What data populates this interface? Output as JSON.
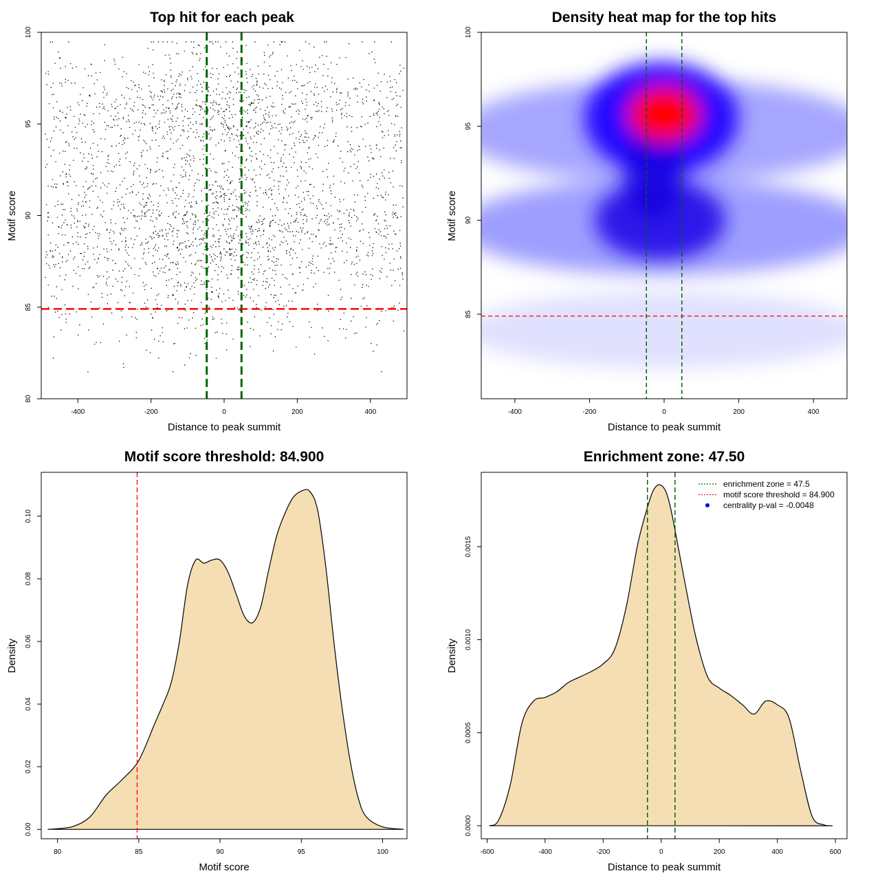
{
  "chart_data": [
    {
      "type": "scatter",
      "title": "Top hit for each peak",
      "xlabel": "Distance to peak summit",
      "ylabel": "Motif score",
      "xlim": [
        -500,
        500
      ],
      "ylim": [
        80,
        100
      ],
      "xticks": [
        -400,
        -200,
        0,
        200,
        400
      ],
      "yticks": [
        80,
        85,
        90,
        95,
        100
      ],
      "n_points": 9000,
      "x_range_of_points": [
        -490,
        490
      ],
      "y_range_of_points": [
        81.5,
        99.5
      ],
      "density_modes_y": [
        95.5,
        89.5
      ],
      "vlines": [
        -47.5,
        47.5
      ],
      "hline": 84.9,
      "colors": {
        "points": "#000000",
        "vline": "#006400",
        "hline": "#ff0000"
      }
    },
    {
      "type": "heatmap",
      "title": "Density heat map for the top hits",
      "xlabel": "Distance to peak summit",
      "ylabel": "Motif score",
      "xlim": [
        -490,
        490
      ],
      "ylim": [
        80.5,
        100
      ],
      "xticks": [
        -400,
        -200,
        0,
        200,
        400
      ],
      "yticks": [
        85,
        90,
        95,
        100
      ],
      "density_peaks": [
        {
          "x": 0,
          "y": 95.5,
          "level": "high"
        },
        {
          "x": 0,
          "y": 90,
          "level": "medium"
        }
      ],
      "vlines": [
        -47.5,
        47.5
      ],
      "hline": 84.9,
      "colors": {
        "low": "#ffffff",
        "mid": "#0000ff",
        "high": "#ff0000",
        "vline": "#006400",
        "hline": "#ff0000"
      }
    },
    {
      "type": "area",
      "title": "Motif score threshold: 84.900",
      "xlabel": "Motif score",
      "ylabel": "Density",
      "xlim": [
        79,
        101.5
      ],
      "ylim": [
        -0.003,
        0.114
      ],
      "xticks": [
        80,
        85,
        90,
        95,
        100
      ],
      "yticks": [
        0.0,
        0.02,
        0.04,
        0.06,
        0.08,
        0.1
      ],
      "ytick_labels": [
        "0.00",
        "0.02",
        "0.04",
        "0.06",
        "0.08",
        "0.10"
      ],
      "x": [
        79.4,
        80,
        81,
        82,
        83,
        84,
        85,
        86,
        86.5,
        87,
        87.5,
        88,
        88.5,
        89,
        89.5,
        90,
        90.5,
        91,
        91.5,
        92,
        92.5,
        93,
        93.5,
        94,
        94.5,
        95,
        95.5,
        96,
        96.5,
        97,
        97.5,
        98,
        98.5,
        99,
        100,
        101.3
      ],
      "y": [
        0.0,
        0.0002,
        0.001,
        0.004,
        0.011,
        0.016,
        0.022,
        0.034,
        0.04,
        0.047,
        0.06,
        0.078,
        0.086,
        0.085,
        0.086,
        0.086,
        0.082,
        0.075,
        0.068,
        0.066,
        0.071,
        0.083,
        0.094,
        0.101,
        0.106,
        0.108,
        0.108,
        0.102,
        0.084,
        0.06,
        0.039,
        0.022,
        0.01,
        0.004,
        0.0008,
        0.0
      ],
      "vline": 84.9,
      "colors": {
        "fill": "#f5deb3",
        "line": "#000000",
        "vline": "#ff0000"
      }
    },
    {
      "type": "area",
      "title": "Enrichment zone: 47.50",
      "xlabel": "Distance to peak summit",
      "ylabel": "Density",
      "xlim": [
        -620,
        640
      ],
      "ylim": [
        -7e-05,
        0.0019
      ],
      "xticks": [
        -600,
        -400,
        -200,
        0,
        200,
        400,
        600
      ],
      "yticks": [
        0.0,
        0.0005,
        0.001,
        0.0015
      ],
      "ytick_labels": [
        "0.0000",
        "0.0005",
        "0.0010",
        "0.0015"
      ],
      "x": [
        -590,
        -560,
        -520,
        -480,
        -440,
        -400,
        -360,
        -320,
        -280,
        -240,
        -200,
        -160,
        -120,
        -80,
        -40,
        -20,
        0,
        20,
        40,
        80,
        120,
        160,
        200,
        240,
        280,
        320,
        360,
        400,
        440,
        480,
        520,
        560,
        590
      ],
      "y": [
        0.0,
        3e-05,
        0.00022,
        0.00055,
        0.00067,
        0.00069,
        0.00072,
        0.00077,
        0.0008,
        0.00083,
        0.00087,
        0.00095,
        0.00118,
        0.00152,
        0.00175,
        0.00182,
        0.00183,
        0.00178,
        0.00165,
        0.00132,
        0.00101,
        0.0008,
        0.00074,
        0.0007,
        0.00065,
        0.0006,
        0.00067,
        0.00065,
        0.00058,
        0.0003,
        5e-05,
        5e-06,
        0.0
      ],
      "vlines": [
        -47.5,
        47.5
      ],
      "legend": {
        "position": "top-right",
        "entries": [
          {
            "label": "enrichment zone = 47.5",
            "color": "#006400",
            "style": "dotted-line"
          },
          {
            "label": "motif score threshold = 84.900",
            "color": "#ff0000",
            "style": "dotted-line"
          },
          {
            "label": "centrality p-val = -0.0048",
            "color": "#0000ff",
            "style": "point"
          }
        ]
      },
      "colors": {
        "fill": "#f5deb3",
        "line": "#000000",
        "vline": "#006400"
      }
    }
  ]
}
